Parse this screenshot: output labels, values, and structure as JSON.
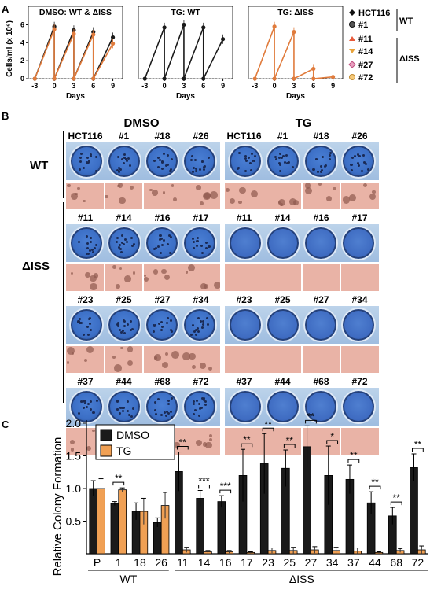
{
  "panel_labels": {
    "a": "A",
    "b": "B",
    "c": "C"
  },
  "panel_a": {
    "ylabel": "Cells/ml (x 10⁶)",
    "xlabel": "Days",
    "x_ticks": [
      "-3",
      "0",
      "3",
      "6",
      "9"
    ],
    "y_ticks": [
      "0",
      "2",
      "4",
      "6"
    ],
    "legend": {
      "items": [
        "HCT116",
        "#1",
        "#11",
        "#14",
        "#27",
        "#72"
      ],
      "group_wt": "WT",
      "group_diss": "ΔISS"
    }
  },
  "panel_b": {
    "dmso_title": "DMSO",
    "tg_title": "TG",
    "row_wt": "WT",
    "row_diss": "ΔISS",
    "rows": [
      [
        "HCT116",
        "#1",
        "#18",
        "#26"
      ],
      [
        "#11",
        "#14",
        "#16",
        "#17"
      ],
      [
        "#23",
        "#25",
        "#27",
        "#34"
      ],
      [
        "#37",
        "#44",
        "#68",
        "#72"
      ]
    ]
  },
  "colors": {
    "dmso": "#1a1a1a",
    "tg": "#f0a054",
    "wt_line": "#1a1a1a",
    "diss_line": "#e07b3c",
    "plate": "#3c6fc6"
  },
  "chart_data": [
    {
      "type": "line",
      "title": "DMSO: WT & ΔISS",
      "xlabel": "Days",
      "ylabel": "Cells/ml (x 10⁶)",
      "ylim": [
        0,
        7
      ],
      "series": [
        {
          "name": "WT",
          "x": [
            -3,
            0,
            0,
            3,
            3,
            6,
            6,
            9
          ],
          "values": [
            0,
            5.8,
            0,
            5.4,
            0,
            5.2,
            0,
            4.6
          ]
        },
        {
          "name": "ΔISS",
          "x": [
            -3,
            0,
            0,
            3,
            3,
            6,
            6,
            9
          ],
          "values": [
            0,
            5.5,
            0,
            5.0,
            0,
            4.9,
            0,
            3.9
          ]
        }
      ]
    },
    {
      "type": "line",
      "title": "TG: WT",
      "xlabel": "Days",
      "ylim": [
        0,
        7
      ],
      "series": [
        {
          "name": "WT",
          "x": [
            -3,
            0,
            0,
            3,
            3,
            6,
            6,
            9
          ],
          "values": [
            0,
            5.7,
            0,
            6.0,
            0,
            5.7,
            0,
            4.4
          ]
        }
      ]
    },
    {
      "type": "line",
      "title": "TG: ΔISS",
      "xlabel": "Days",
      "ylim": [
        0,
        7
      ],
      "series": [
        {
          "name": "ΔISS",
          "x": [
            -3,
            0,
            0,
            3,
            3,
            6,
            6,
            9
          ],
          "values": [
            0,
            5.8,
            0,
            5.2,
            0,
            1.1,
            0,
            0.2
          ]
        }
      ]
    },
    {
      "type": "bar",
      "ylabel": "Relative Colony Formation",
      "ylim": [
        0,
        2.0
      ],
      "y_ticks": [
        "0.5",
        "1.0",
        "1.5",
        "2.0"
      ],
      "categories": [
        "P",
        "1",
        "18",
        "26",
        "11",
        "14",
        "16",
        "17",
        "23",
        "25",
        "27",
        "34",
        "37",
        "44",
        "68",
        "72"
      ],
      "groups": {
        "wt": "WT",
        "diss": "ΔISS"
      },
      "series": [
        {
          "name": "DMSO",
          "values": [
            1.0,
            0.77,
            0.65,
            0.48,
            1.26,
            0.85,
            0.8,
            1.2,
            1.38,
            1.31,
            1.64,
            1.2,
            1.14,
            0.78,
            0.58,
            1.32
          ],
          "errors": [
            0.12,
            0.03,
            0.13,
            0.07,
            0.3,
            0.12,
            0.09,
            0.4,
            0.46,
            0.28,
            0.32,
            0.45,
            0.22,
            0.17,
            0.13,
            0.21
          ]
        },
        {
          "name": "TG",
          "values": [
            1.0,
            0.98,
            0.65,
            0.74,
            0.06,
            0.03,
            0.03,
            0.02,
            0.05,
            0.05,
            0.06,
            0.05,
            0.04,
            0.02,
            0.05,
            0.06
          ],
          "errors": [
            0.15,
            0.03,
            0.2,
            0.2,
            0.04,
            0.02,
            0.02,
            0.01,
            0.04,
            0.05,
            0.05,
            0.05,
            0.05,
            0.01,
            0.03,
            0.06
          ]
        }
      ],
      "significance": [
        {
          "category": "1",
          "label": "**"
        },
        {
          "category": "11",
          "label": "**"
        },
        {
          "category": "14",
          "label": "***"
        },
        {
          "category": "16",
          "label": "***"
        },
        {
          "category": "17",
          "label": "**"
        },
        {
          "category": "23",
          "label": "**"
        },
        {
          "category": "25",
          "label": "**"
        },
        {
          "category": "27",
          "label": "**"
        },
        {
          "category": "34",
          "label": "*"
        },
        {
          "category": "37",
          "label": "**"
        },
        {
          "category": "44",
          "label": "**"
        },
        {
          "category": "68",
          "label": "**"
        },
        {
          "category": "72",
          "label": "**"
        }
      ]
    }
  ]
}
